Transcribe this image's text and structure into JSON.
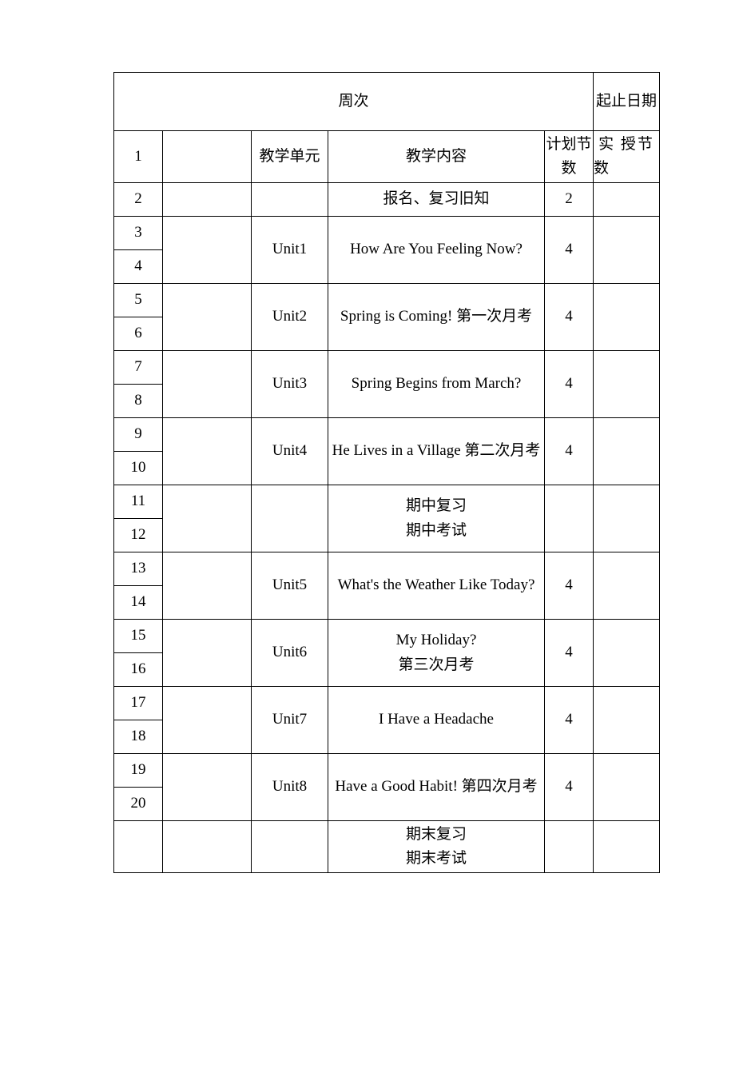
{
  "colors": {
    "page_bg": "#ffffff",
    "border": "#000000",
    "text": "#000000"
  },
  "font": {
    "family": "SimSun",
    "size": 19
  },
  "table": {
    "header": {
      "week_label": "周次",
      "date_label": "起止日期"
    },
    "labels": {
      "unit": "教学单元",
      "content": "教学内容",
      "planned": "计划节数",
      "actual": "实 授节数"
    },
    "rows": [
      {
        "num": "1",
        "unit": "",
        "content": "",
        "planned": "",
        "type": "label"
      },
      {
        "num": "2",
        "unit": "",
        "content": "报名、复习旧知",
        "planned": "2"
      },
      {
        "num": "3",
        "unit": "Unit1",
        "content": "How Are You Feeling Now?",
        "planned": "4",
        "span": 2
      },
      {
        "num": "4"
      },
      {
        "num": "5",
        "unit": "Unit2",
        "content": "Spring is Coming!     第一次月考",
        "planned": "4",
        "span": 2
      },
      {
        "num": "6"
      },
      {
        "num": "7",
        "unit": "Unit3",
        "content": "Spring Begins from March?",
        "planned": "4",
        "span": 2
      },
      {
        "num": "8"
      },
      {
        "num": "9",
        "unit": "Unit4",
        "content": "He Lives in a Village    第二次月考",
        "planned": "4",
        "span": 2
      },
      {
        "num": "10"
      },
      {
        "num": "11",
        "unit": "",
        "content": "期中复习\n期中考试",
        "planned": "",
        "span": 2
      },
      {
        "num": "12"
      },
      {
        "num": "13",
        "unit": "Unit5",
        "content": "What's the Weather Like Today?",
        "planned": "4",
        "span": 2
      },
      {
        "num": "14"
      },
      {
        "num": "15",
        "unit": "Unit6",
        "content": "My Holiday?\n第三次月考",
        "planned": "4",
        "span": 2
      },
      {
        "num": "16"
      },
      {
        "num": "17",
        "unit": "Unit7",
        "content": "I Have a Headache",
        "planned": "4",
        "span": 2
      },
      {
        "num": "18"
      },
      {
        "num": "19",
        "unit": "Unit8",
        "content": "Have a Good Habit!     第四次月考",
        "planned": "4",
        "span": 2
      },
      {
        "num": "20"
      },
      {
        "num": "",
        "unit": "",
        "content": "期末复习\n期末考试",
        "planned": "",
        "final": true
      }
    ]
  }
}
